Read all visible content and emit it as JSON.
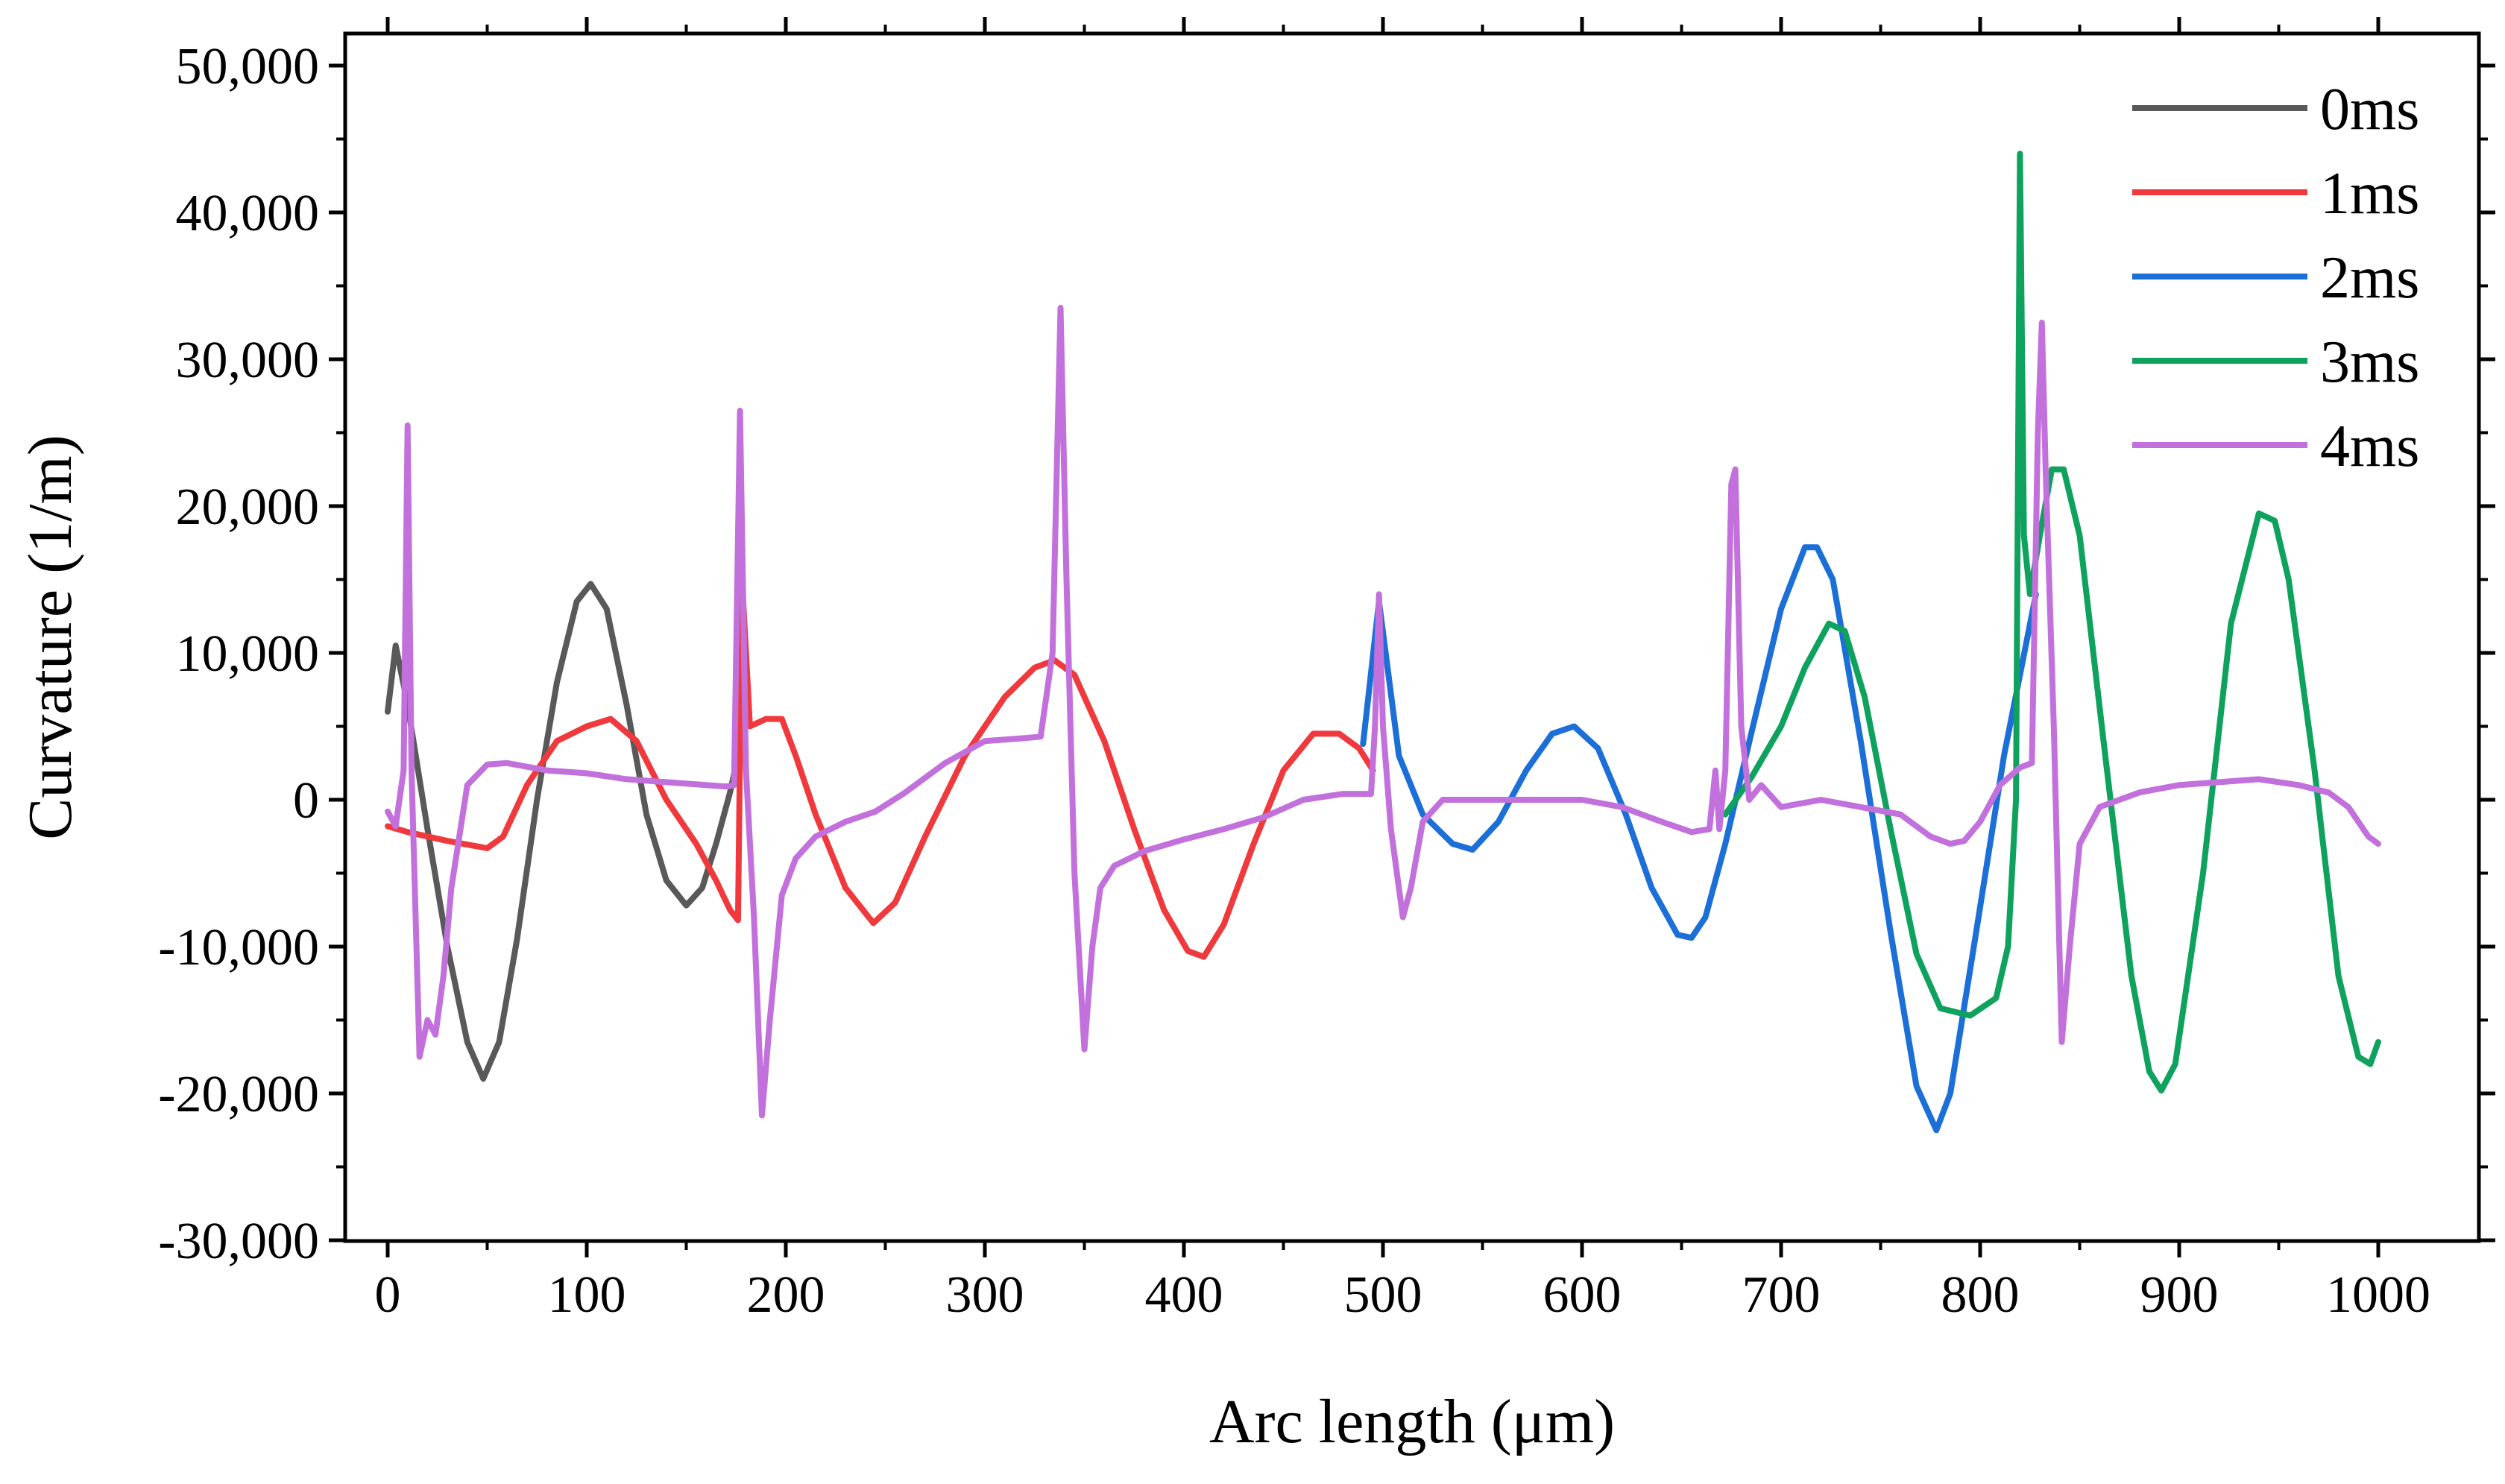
{
  "chart_data": {
    "type": "line",
    "title": "",
    "xlabel": "Arc length (μm)",
    "ylabel": "Curvature (1/m)",
    "xlim": [
      -20,
      1050
    ],
    "ylim": [
      -30000,
      52000
    ],
    "xticks": [
      0,
      100,
      200,
      300,
      400,
      500,
      600,
      700,
      800,
      900,
      1000
    ],
    "xtick_labels": [
      "0",
      "100",
      "200",
      "300",
      "400",
      "500",
      "600",
      "700",
      "800",
      "900",
      "1000"
    ],
    "yticks": [
      -30000,
      -20000,
      -10000,
      0,
      10000,
      20000,
      30000,
      40000,
      50000
    ],
    "ytick_labels": [
      "-30,000",
      "-20,000",
      "-10,000",
      "0",
      "10,000",
      "20,000",
      "30,000",
      "40,000",
      "50,000"
    ],
    "grid": false,
    "legend_position": "top-right",
    "series": [
      {
        "name": "0ms",
        "color": "#595959",
        "x": [
          0,
          4,
          10,
          20,
          30,
          40,
          48,
          56,
          65,
          75,
          85,
          95,
          102,
          110,
          120,
          130,
          140,
          150,
          158,
          165,
          172,
          176
        ],
        "y": [
          6000,
          10500,
          6500,
          -2000,
          -10000,
          -16500,
          -19000,
          -16500,
          -9500,
          0,
          8000,
          13500,
          14700,
          13000,
          6500,
          -1000,
          -5500,
          -7200,
          -6000,
          -3000,
          500,
          3000
        ]
      },
      {
        "name": "1ms",
        "color": "#f0393c",
        "x": [
          0,
          10,
          30,
          50,
          58,
          70,
          85,
          100,
          112,
          125,
          140,
          155,
          165,
          172,
          176,
          178,
          182,
          190,
          198,
          205,
          215,
          230,
          244,
          255,
          270,
          290,
          310,
          325,
          335,
          345,
          360,
          375,
          390,
          402,
          410,
          420,
          435,
          450,
          465,
          478,
          488,
          495
        ],
        "y": [
          -1800,
          -2200,
          -2800,
          -3300,
          -2500,
          1000,
          4000,
          5000,
          5500,
          4000,
          0,
          -3000,
          -5500,
          -7500,
          -8200,
          15000,
          5000,
          5500,
          5500,
          3000,
          -1000,
          -6000,
          -8400,
          -7000,
          -2500,
          3000,
          7000,
          9000,
          9500,
          8500,
          4000,
          -2000,
          -7500,
          -10300,
          -10700,
          -8500,
          -3000,
          2000,
          4500,
          4500,
          3500,
          2000
        ]
      },
      {
        "name": "2ms",
        "color": "#1d6fd8",
        "x": [
          490,
          498,
          508,
          520,
          535,
          545,
          558,
          572,
          585,
          596,
          608,
          622,
          635,
          648,
          655,
          662,
          672,
          685,
          700,
          712,
          718,
          726,
          740,
          755,
          768,
          778,
          785,
          798,
          812,
          828
        ],
        "y": [
          3800,
          13500,
          3000,
          -1000,
          -3000,
          -3400,
          -1500,
          2000,
          4500,
          5000,
          3500,
          -1000,
          -6000,
          -9200,
          -9400,
          -8000,
          -3000,
          4500,
          13000,
          17200,
          17200,
          15000,
          4000,
          -9000,
          -19500,
          -22500,
          -20000,
          -9000,
          3000,
          14000
        ]
      },
      {
        "name": "3ms",
        "color": "#0fa25e",
        "x": [
          672,
          685,
          700,
          712,
          724,
          732,
          742,
          755,
          768,
          780,
          795,
          808,
          814,
          818,
          820,
          822,
          825,
          830,
          836,
          842,
          850,
          862,
          876,
          885,
          891,
          898,
          912,
          926,
          940,
          948,
          955,
          968,
          980,
          990,
          996,
          1000
        ],
        "y": [
          -1000,
          1500,
          5000,
          9000,
          12000,
          11500,
          7000,
          -2000,
          -10500,
          -14200,
          -14700,
          -13500,
          -10000,
          0,
          44000,
          18000,
          14000,
          18000,
          22500,
          22500,
          18000,
          4000,
          -12000,
          -18500,
          -19800,
          -18000,
          -5000,
          12000,
          19500,
          19000,
          15000,
          2000,
          -12000,
          -17500,
          -18000,
          -16500
        ]
      },
      {
        "name": "4ms",
        "color": "#c271dc",
        "x": [
          0,
          4,
          8,
          10,
          12,
          16,
          20,
          24,
          28,
          32,
          40,
          50,
          60,
          80,
          100,
          120,
          140,
          160,
          170,
          174,
          177,
          180,
          184,
          188,
          192,
          198,
          205,
          215,
          230,
          245,
          260,
          280,
          300,
          320,
          328,
          334,
          338,
          341,
          345,
          350,
          354,
          358,
          365,
          380,
          400,
          420,
          440,
          460,
          480,
          490,
          494,
          496,
          498,
          500,
          504,
          510,
          514,
          520,
          530,
          550,
          580,
          600,
          620,
          640,
          655,
          664,
          667,
          669,
          672,
          675,
          677,
          680,
          684,
          690,
          700,
          720,
          740,
          760,
          775,
          785,
          792,
          800,
          810,
          820,
          826,
          829,
          831,
          833,
          837,
          841,
          845,
          850,
          860,
          880,
          900,
          920,
          940,
          960,
          975,
          985,
          995,
          1000
        ],
        "y": [
          -800,
          -1800,
          2000,
          25500,
          2000,
          -17500,
          -15000,
          -16000,
          -12000,
          -6000,
          1000,
          2400,
          2500,
          2000,
          1800,
          1400,
          1200,
          1000,
          900,
          1000,
          26500,
          2000,
          -8000,
          -21500,
          -15000,
          -6500,
          -4000,
          -2500,
          -1500,
          -800,
          500,
          2500,
          4000,
          4200,
          4300,
          10000,
          33500,
          15000,
          -5000,
          -17000,
          -10000,
          -6000,
          -4500,
          -3500,
          -2700,
          -2000,
          -1200,
          0,
          400,
          400,
          400,
          5000,
          14000,
          5000,
          -2000,
          -8000,
          -6000,
          -1500,
          0,
          0,
          0,
          0,
          -500,
          -1500,
          -2200,
          -2000,
          2000,
          -2000,
          2000,
          21500,
          22500,
          5000,
          0,
          1000,
          -500,
          0,
          -500,
          -1000,
          -2500,
          -3000,
          -2800,
          -1500,
          1000,
          2200,
          2500,
          25000,
          32500,
          22000,
          5000,
          -16500,
          -10000,
          -3000,
          -500,
          500,
          1000,
          1200,
          1400,
          1000,
          500,
          -500,
          -2500,
          -3000
        ]
      }
    ]
  }
}
